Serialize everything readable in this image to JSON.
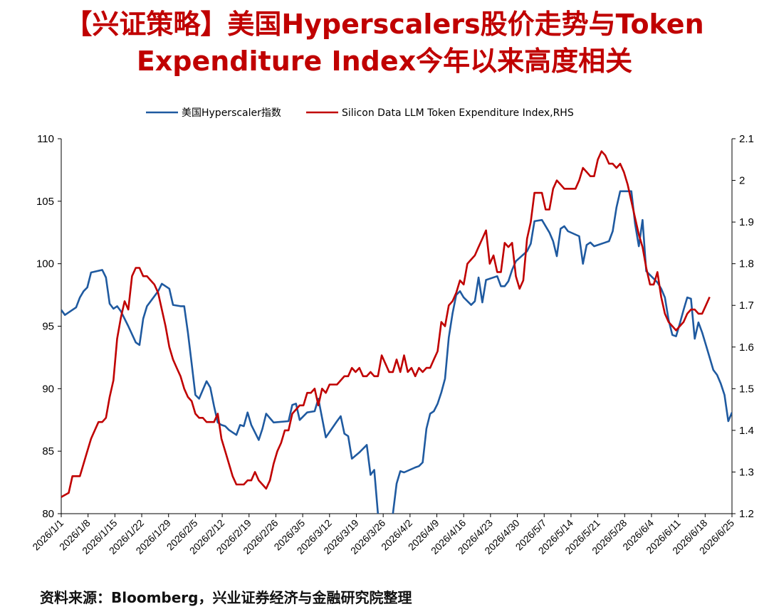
{
  "title_line1": "【兴证策略】美国Hyperscalers股价走势与Token",
  "title_line2": "Expenditure Index今年以来高度相关",
  "source": "资料来源：Bloomberg，兴业证券经济与金融研究院整理",
  "chart_data": {
    "type": "line",
    "x_ticks": [
      "2026/1/1",
      "2026/1/8",
      "2026/1/15",
      "2026/1/22",
      "2026/1/29",
      "2026/2/5",
      "2026/2/12",
      "2026/2/19",
      "2026/2/26",
      "2026/3/5",
      "2026/3/12",
      "2026/3/19",
      "2026/3/26",
      "2026/4/2",
      "2026/4/9",
      "2026/4/16",
      "2026/4/23",
      "2026/4/30",
      "2026/5/7",
      "2026/5/14",
      "2026/5/21",
      "2026/5/28",
      "2026/6/4",
      "2026/6/11",
      "2026/6/18",
      "2026/6/25"
    ],
    "ylim_left": [
      80,
      110
    ],
    "yticks_left": [
      "80",
      "85",
      "90",
      "95",
      "100",
      "105",
      "110"
    ],
    "ylim_right": [
      1.2,
      2.1
    ],
    "yticks_right": [
      "1.2",
      "1.3",
      "1.4",
      "1.5",
      "1.6",
      "1.7",
      "1.8",
      "1.9",
      "2",
      "2.1"
    ],
    "legend_position": "top",
    "series": [
      {
        "name": "美国Hyperscaler指数",
        "axis": "left",
        "color": "#1f5aa0",
        "points": [
          [
            0,
            96.3
          ],
          [
            1,
            95.9
          ],
          [
            4,
            96.5
          ],
          [
            5,
            97.3
          ],
          [
            6,
            97.8
          ],
          [
            7,
            98.1
          ],
          [
            8,
            99.3
          ],
          [
            11,
            99.5
          ],
          [
            12,
            98.9
          ],
          [
            13,
            96.8
          ],
          [
            14,
            96.4
          ],
          [
            15,
            96.6
          ],
          [
            16,
            96.2
          ],
          [
            18,
            95.0
          ],
          [
            20,
            93.7
          ],
          [
            21,
            93.5
          ],
          [
            22,
            95.6
          ],
          [
            23,
            96.6
          ],
          [
            26,
            97.8
          ],
          [
            27,
            98.4
          ],
          [
            29,
            98.0
          ],
          [
            30,
            96.7
          ],
          [
            32,
            96.6
          ],
          [
            33,
            96.6
          ],
          [
            34,
            94.5
          ],
          [
            35,
            92.0
          ],
          [
            36,
            89.5
          ],
          [
            37,
            89.2
          ],
          [
            39,
            90.6
          ],
          [
            40,
            90.1
          ],
          [
            41,
            88.6
          ],
          [
            42,
            87.3
          ],
          [
            43,
            87.1
          ],
          [
            44,
            87.0
          ],
          [
            45,
            86.7
          ],
          [
            47,
            86.3
          ],
          [
            48,
            87.1
          ],
          [
            49,
            87.0
          ],
          [
            50,
            88.1
          ],
          [
            51,
            87.1
          ],
          [
            53,
            85.9
          ],
          [
            54,
            86.8
          ],
          [
            55,
            88.0
          ],
          [
            57,
            87.3
          ],
          [
            61,
            87.4
          ],
          [
            62,
            88.7
          ],
          [
            63,
            88.8
          ],
          [
            64,
            87.5
          ],
          [
            66,
            88.1
          ],
          [
            68,
            88.2
          ],
          [
            69,
            89.2
          ],
          [
            71,
            86.1
          ],
          [
            74,
            87.4
          ],
          [
            75,
            87.8
          ],
          [
            76,
            86.4
          ],
          [
            77,
            86.2
          ],
          [
            78,
            84.4
          ],
          [
            80,
            84.9
          ],
          [
            82,
            85.5
          ],
          [
            83,
            83.1
          ],
          [
            84,
            83.5
          ],
          [
            85,
            80.0
          ],
          [
            86,
            78.0
          ],
          [
            87,
            77.6
          ],
          [
            88,
            78.3
          ],
          [
            89,
            80.0
          ],
          [
            90,
            82.4
          ],
          [
            91,
            83.4
          ],
          [
            92,
            83.3
          ],
          [
            95,
            83.7
          ],
          [
            96,
            83.8
          ],
          [
            97,
            84.1
          ],
          [
            98,
            86.8
          ],
          [
            99,
            88.0
          ],
          [
            100,
            88.2
          ],
          [
            101,
            88.8
          ],
          [
            102,
            89.7
          ],
          [
            103,
            90.8
          ],
          [
            104,
            94.1
          ],
          [
            105,
            96.0
          ],
          [
            106,
            97.5
          ],
          [
            107,
            97.8
          ],
          [
            108,
            97.3
          ],
          [
            110,
            96.7
          ],
          [
            111,
            97.0
          ],
          [
            112,
            98.9
          ],
          [
            113,
            96.9
          ],
          [
            114,
            98.7
          ],
          [
            117,
            99.0
          ],
          [
            118,
            98.2
          ],
          [
            119,
            98.2
          ],
          [
            120,
            98.6
          ],
          [
            121,
            99.5
          ],
          [
            122,
            100.2
          ],
          [
            125,
            101.0
          ],
          [
            126,
            101.6
          ],
          [
            127,
            103.4
          ],
          [
            129,
            103.5
          ],
          [
            131,
            102.5
          ],
          [
            132,
            101.8
          ],
          [
            133,
            100.6
          ],
          [
            134,
            102.8
          ],
          [
            135,
            103.0
          ],
          [
            136,
            102.6
          ],
          [
            139,
            102.2
          ],
          [
            140,
            100.0
          ],
          [
            141,
            101.5
          ],
          [
            142,
            101.7
          ],
          [
            143,
            101.4
          ],
          [
            146,
            101.7
          ],
          [
            147,
            101.8
          ],
          [
            148,
            102.6
          ],
          [
            149,
            104.5
          ],
          [
            150,
            105.8
          ],
          [
            153,
            105.8
          ],
          [
            154,
            103.2
          ],
          [
            155,
            101.4
          ],
          [
            156,
            103.5
          ],
          [
            157,
            99.4
          ],
          [
            160,
            98.5
          ],
          [
            161,
            98.0
          ],
          [
            162,
            97.3
          ],
          [
            163,
            95.5
          ],
          [
            164,
            94.3
          ],
          [
            165,
            94.2
          ],
          [
            166,
            95.2
          ],
          [
            167,
            96.3
          ],
          [
            168,
            97.3
          ],
          [
            169,
            97.2
          ],
          [
            170,
            94.0
          ],
          [
            171,
            95.3
          ],
          [
            172,
            94.5
          ],
          [
            173,
            93.5
          ],
          [
            174,
            92.5
          ],
          [
            175,
            91.5
          ],
          [
            176,
            91.1
          ],
          [
            177,
            90.4
          ],
          [
            178,
            89.5
          ],
          [
            179,
            87.4
          ],
          [
            180,
            88.1
          ]
        ]
      },
      {
        "name": "Silicon Data LLM Token Expenditure Index,RHS",
        "axis": "right",
        "color": "#c00000",
        "points": [
          [
            0,
            1.24
          ],
          [
            2,
            1.25
          ],
          [
            3,
            1.29
          ],
          [
            5,
            1.29
          ],
          [
            6,
            1.32
          ],
          [
            7,
            1.35
          ],
          [
            8,
            1.38
          ],
          [
            9,
            1.4
          ],
          [
            10,
            1.42
          ],
          [
            11,
            1.42
          ],
          [
            12,
            1.43
          ],
          [
            13,
            1.48
          ],
          [
            14,
            1.52
          ],
          [
            15,
            1.62
          ],
          [
            16,
            1.67
          ],
          [
            17,
            1.71
          ],
          [
            18,
            1.69
          ],
          [
            19,
            1.77
          ],
          [
            20,
            1.79
          ],
          [
            21,
            1.79
          ],
          [
            22,
            1.77
          ],
          [
            23,
            1.77
          ],
          [
            24,
            1.76
          ],
          [
            25,
            1.75
          ],
          [
            26,
            1.73
          ],
          [
            27,
            1.69
          ],
          [
            28,
            1.65
          ],
          [
            29,
            1.6
          ],
          [
            30,
            1.57
          ],
          [
            31,
            1.55
          ],
          [
            32,
            1.53
          ],
          [
            33,
            1.5
          ],
          [
            34,
            1.48
          ],
          [
            35,
            1.47
          ],
          [
            36,
            1.44
          ],
          [
            37,
            1.43
          ],
          [
            38,
            1.43
          ],
          [
            39,
            1.42
          ],
          [
            40,
            1.42
          ],
          [
            41,
            1.42
          ],
          [
            42,
            1.44
          ],
          [
            43,
            1.38
          ],
          [
            44,
            1.35
          ],
          [
            45,
            1.32
          ],
          [
            46,
            1.29
          ],
          [
            47,
            1.27
          ],
          [
            48,
            1.27
          ],
          [
            49,
            1.27
          ],
          [
            50,
            1.28
          ],
          [
            51,
            1.28
          ],
          [
            52,
            1.3
          ],
          [
            53,
            1.28
          ],
          [
            54,
            1.27
          ],
          [
            55,
            1.26
          ],
          [
            56,
            1.28
          ],
          [
            57,
            1.32
          ],
          [
            58,
            1.35
          ],
          [
            59,
            1.37
          ],
          [
            60,
            1.4
          ],
          [
            61,
            1.4
          ],
          [
            62,
            1.44
          ],
          [
            63,
            1.45
          ],
          [
            64,
            1.46
          ],
          [
            65,
            1.46
          ],
          [
            66,
            1.49
          ],
          [
            67,
            1.49
          ],
          [
            68,
            1.5
          ],
          [
            69,
            1.46
          ],
          [
            70,
            1.5
          ],
          [
            71,
            1.49
          ],
          [
            72,
            1.51
          ],
          [
            73,
            1.51
          ],
          [
            74,
            1.51
          ],
          [
            75,
            1.52
          ],
          [
            76,
            1.53
          ],
          [
            77,
            1.53
          ],
          [
            78,
            1.55
          ],
          [
            79,
            1.54
          ],
          [
            80,
            1.55
          ],
          [
            81,
            1.53
          ],
          [
            82,
            1.53
          ],
          [
            83,
            1.54
          ],
          [
            84,
            1.53
          ],
          [
            85,
            1.53
          ],
          [
            86,
            1.58
          ],
          [
            87,
            1.56
          ],
          [
            88,
            1.54
          ],
          [
            89,
            1.54
          ],
          [
            90,
            1.57
          ],
          [
            91,
            1.54
          ],
          [
            92,
            1.58
          ],
          [
            93,
            1.54
          ],
          [
            94,
            1.55
          ],
          [
            95,
            1.53
          ],
          [
            96,
            1.55
          ],
          [
            97,
            1.54
          ],
          [
            98,
            1.55
          ],
          [
            99,
            1.55
          ],
          [
            100,
            1.57
          ],
          [
            101,
            1.59
          ],
          [
            102,
            1.66
          ],
          [
            103,
            1.65
          ],
          [
            104,
            1.7
          ],
          [
            105,
            1.71
          ],
          [
            106,
            1.73
          ],
          [
            107,
            1.76
          ],
          [
            108,
            1.75
          ],
          [
            109,
            1.8
          ],
          [
            110,
            1.81
          ],
          [
            111,
            1.82
          ],
          [
            112,
            1.84
          ],
          [
            113,
            1.86
          ],
          [
            114,
            1.88
          ],
          [
            115,
            1.8
          ],
          [
            116,
            1.82
          ],
          [
            117,
            1.78
          ],
          [
            118,
            1.78
          ],
          [
            119,
            1.85
          ],
          [
            120,
            1.84
          ],
          [
            121,
            1.85
          ],
          [
            122,
            1.77
          ],
          [
            123,
            1.74
          ],
          [
            124,
            1.76
          ],
          [
            125,
            1.86
          ],
          [
            126,
            1.9
          ],
          [
            127,
            1.97
          ],
          [
            128,
            1.97
          ],
          [
            129,
            1.97
          ],
          [
            130,
            1.93
          ],
          [
            131,
            1.93
          ],
          [
            132,
            1.98
          ],
          [
            133,
            2.0
          ],
          [
            134,
            1.99
          ],
          [
            135,
            1.98
          ],
          [
            136,
            1.98
          ],
          [
            137,
            1.98
          ],
          [
            138,
            1.98
          ],
          [
            139,
            2.0
          ],
          [
            140,
            2.03
          ],
          [
            141,
            2.02
          ],
          [
            142,
            2.01
          ],
          [
            143,
            2.01
          ],
          [
            144,
            2.05
          ],
          [
            145,
            2.07
          ],
          [
            146,
            2.06
          ],
          [
            147,
            2.04
          ],
          [
            148,
            2.04
          ],
          [
            149,
            2.03
          ],
          [
            150,
            2.04
          ],
          [
            151,
            2.02
          ],
          [
            152,
            1.99
          ],
          [
            153,
            1.95
          ],
          [
            154,
            1.91
          ],
          [
            155,
            1.87
          ],
          [
            156,
            1.84
          ],
          [
            157,
            1.79
          ],
          [
            158,
            1.75
          ],
          [
            159,
            1.75
          ],
          [
            160,
            1.78
          ],
          [
            161,
            1.72
          ],
          [
            162,
            1.68
          ],
          [
            163,
            1.66
          ],
          [
            164,
            1.65
          ],
          [
            165,
            1.64
          ],
          [
            166,
            1.65
          ],
          [
            167,
            1.66
          ],
          [
            168,
            1.68
          ],
          [
            169,
            1.69
          ],
          [
            170,
            1.69
          ],
          [
            171,
            1.68
          ],
          [
            172,
            1.68
          ],
          [
            173,
            1.7
          ],
          [
            174,
            1.72
          ]
        ]
      }
    ]
  }
}
